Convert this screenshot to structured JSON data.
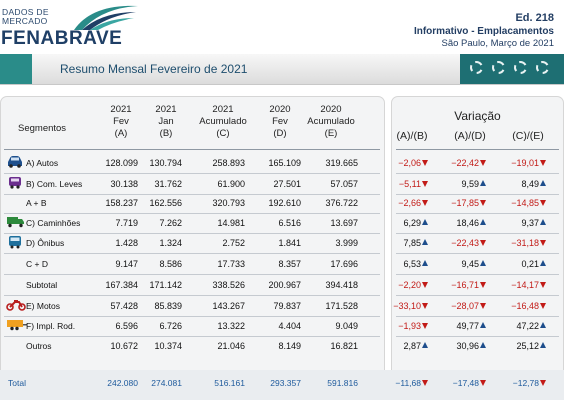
{
  "header": {
    "logo_line1": "DADOS DE",
    "logo_line2": "MERCADO",
    "brand": "FENABRAVE",
    "edition": "Ed. 218",
    "subtitle": "Informativo - Emplacamentos",
    "dateline": "São Paulo, Março de 2021"
  },
  "banner": {
    "title": "Resumo Mensal Fevereiro de 2021"
  },
  "colors": {
    "negative": "#c21b17",
    "up_arrow": "#1d4d8c",
    "teal": "#2a8c89",
    "brand": "#1f3f66",
    "total": "#1e5a9c"
  },
  "table": {
    "segment_header": "Segmentos",
    "columns": [
      [
        "2021",
        "Fev",
        "(A)"
      ],
      [
        "2021",
        "Jan",
        "(B)"
      ],
      [
        "2021",
        "Acumulado",
        "(C)"
      ],
      [
        "2020",
        "Fev",
        "(D)"
      ],
      [
        "2020",
        "Acumulado",
        "(E)"
      ]
    ],
    "variation_title": "Variação",
    "variation_columns": [
      "(A)/(B)",
      "(A)/(D)",
      "(C)/(E)"
    ],
    "rows": [
      {
        "label": "A) Autos",
        "icon": "car-icon",
        "values": [
          "128.099",
          "130.794",
          "258.893",
          "165.109",
          "319.665"
        ],
        "var": [
          [
            "−2,06",
            "down"
          ],
          [
            "−22,42",
            "down"
          ],
          [
            "−19,01",
            "down"
          ]
        ]
      },
      {
        "label": "B) Com. Leves",
        "icon": "van-icon",
        "values": [
          "30.138",
          "31.762",
          "61.900",
          "27.501",
          "57.057"
        ],
        "var": [
          [
            "−5,11",
            "down"
          ],
          [
            "9,59",
            "up"
          ],
          [
            "8,49",
            "up"
          ]
        ]
      },
      {
        "label": "A + B",
        "icon": "",
        "values": [
          "158.237",
          "162.556",
          "320.793",
          "192.610",
          "376.722"
        ],
        "var": [
          [
            "−2,66",
            "down"
          ],
          [
            "−17,85",
            "down"
          ],
          [
            "−14,85",
            "down"
          ]
        ]
      },
      {
        "label": "C) Caminhões",
        "icon": "truck-icon",
        "values": [
          "7.719",
          "7.262",
          "14.981",
          "6.516",
          "13.697"
        ],
        "var": [
          [
            "6,29",
            "up"
          ],
          [
            "18,46",
            "up"
          ],
          [
            "9,37",
            "up"
          ]
        ]
      },
      {
        "label": "D) Ônibus",
        "icon": "bus-icon",
        "values": [
          "1.428",
          "1.324",
          "2.752",
          "1.841",
          "3.999"
        ],
        "var": [
          [
            "7,85",
            "up"
          ],
          [
            "−22,43",
            "down"
          ],
          [
            "−31,18",
            "down"
          ]
        ]
      },
      {
        "label": "C + D",
        "icon": "",
        "values": [
          "9.147",
          "8.586",
          "17.733",
          "8.357",
          "17.696"
        ],
        "var": [
          [
            "6,53",
            "up"
          ],
          [
            "9,45",
            "up"
          ],
          [
            "0,21",
            "up"
          ]
        ]
      },
      {
        "label": "Subtotal",
        "icon": "",
        "values": [
          "167.384",
          "171.142",
          "338.526",
          "200.967",
          "394.418"
        ],
        "var": [
          [
            "−2,20",
            "down"
          ],
          [
            "−16,71",
            "down"
          ],
          [
            "−14,17",
            "down"
          ]
        ]
      },
      {
        "label": "E) Motos",
        "icon": "motorcycle-icon",
        "values": [
          "57.428",
          "85.839",
          "143.267",
          "79.837",
          "171.528"
        ],
        "var": [
          [
            "−33,10",
            "down"
          ],
          [
            "−28,07",
            "down"
          ],
          [
            "−16,48",
            "down"
          ]
        ]
      },
      {
        "label": "F) Impl. Rod.",
        "icon": "trailer-icon",
        "values": [
          "6.596",
          "6.726",
          "13.322",
          "4.404",
          "9.049"
        ],
        "var": [
          [
            "−1,93",
            "down"
          ],
          [
            "49,77",
            "up"
          ],
          [
            "47,22",
            "up"
          ]
        ]
      },
      {
        "label": "Outros",
        "icon": "",
        "values": [
          "10.672",
          "10.374",
          "21.046",
          "8.149",
          "16.821"
        ],
        "var": [
          [
            "2,87",
            "up"
          ],
          [
            "30,96",
            "up"
          ],
          [
            "25,12",
            "up"
          ]
        ]
      }
    ],
    "total": {
      "label": "Total",
      "values": [
        "242.080",
        "274.081",
        "516.161",
        "293.357",
        "591.816"
      ],
      "var": [
        [
          "−11,68",
          "down"
        ],
        [
          "−17,48",
          "down"
        ],
        [
          "−12,78",
          "down"
        ]
      ]
    }
  }
}
